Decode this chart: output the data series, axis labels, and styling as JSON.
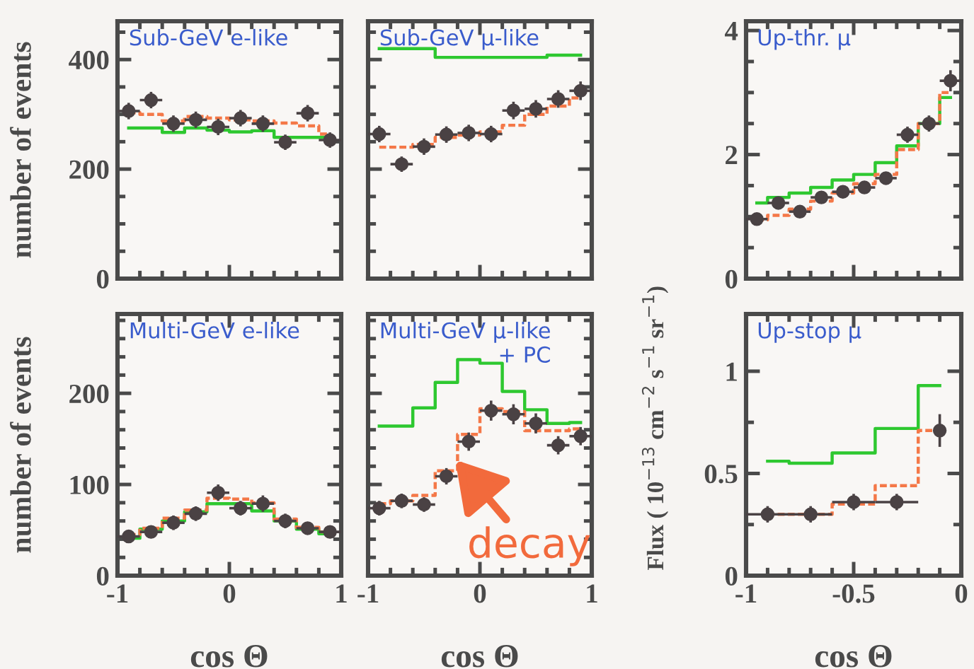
{
  "chart_data": [
    {
      "type": "scatter",
      "title": "Sub-GeV e-like",
      "ylabel": "number of events",
      "x": [
        -0.9,
        -0.7,
        -0.5,
        -0.3,
        -0.1,
        0.1,
        0.3,
        0.5,
        0.7,
        0.9
      ],
      "xlim": [
        -1,
        1
      ],
      "ylim": [
        0,
        470
      ],
      "xticks": [
        -1,
        {
          "value": -0.8,
          "label": null
        },
        {
          "value": -0.6,
          "label": null
        },
        {
          "value": -0.4,
          "label": null
        },
        {
          "value": -0.2,
          "label": null
        },
        0,
        {
          "value": 0.2,
          "label": null
        },
        {
          "value": 0.4,
          "label": null
        },
        {
          "value": 0.6,
          "label": null
        },
        {
          "value": 0.8,
          "label": null
        },
        1
      ],
      "yticks": [
        0,
        {
          "value": 50,
          "label": null
        },
        {
          "value": 100,
          "label": null
        },
        {
          "value": 150,
          "label": null
        },
        200,
        {
          "value": 250,
          "label": null
        },
        {
          "value": 300,
          "label": null
        },
        {
          "value": 350,
          "label": null
        },
        400,
        {
          "value": 450,
          "label": null
        }
      ],
      "tick_labels": "y",
      "series": [
        {
          "marker": "circle",
          "color": "#4a4244",
          "values": [
            306,
            326,
            283,
            290,
            277,
            293,
            283,
            249,
            302,
            253
          ],
          "errors": [
            15,
            15,
            15,
            15,
            15,
            15,
            15,
            14,
            15,
            14
          ],
          "xerrors": [
            0.1,
            0.1,
            0.1,
            0.1,
            0.1,
            0.1,
            0.1,
            0.1,
            0.1,
            0.1
          ]
        },
        {
          "type": "step",
          "color": "#2ec830",
          "values": [
            275,
            275,
            267,
            275,
            271,
            268,
            270,
            258,
            258,
            258
          ]
        },
        {
          "type": "step",
          "color": "#f47848",
          "line_style": "dashed",
          "values": [
            303,
            300,
            288,
            296,
            293,
            290,
            288,
            284,
            279,
            264
          ]
        }
      ]
    },
    {
      "type": "scatter",
      "title": "Sub-GeV μ-like",
      "x": [
        -0.9,
        -0.7,
        -0.5,
        -0.3,
        -0.1,
        0.1,
        0.3,
        0.5,
        0.7,
        0.9
      ],
      "xlim": [
        -1,
        1
      ],
      "ylim": [
        0,
        470
      ],
      "xticks": [
        -1,
        {
          "value": -0.8,
          "label": null
        },
        {
          "value": -0.6,
          "label": null
        },
        {
          "value": -0.4,
          "label": null
        },
        {
          "value": -0.2,
          "label": null
        },
        0,
        {
          "value": 0.2,
          "label": null
        },
        {
          "value": 0.4,
          "label": null
        },
        {
          "value": 0.6,
          "label": null
        },
        {
          "value": 0.8,
          "label": null
        },
        1
      ],
      "yticks": [
        0,
        {
          "value": 50,
          "label": null
        },
        {
          "value": 100,
          "label": null
        },
        {
          "value": 150,
          "label": null
        },
        200,
        {
          "value": 250,
          "label": null
        },
        {
          "value": 300,
          "label": null
        },
        {
          "value": 350,
          "label": null
        },
        400,
        {
          "value": 450,
          "label": null
        }
      ],
      "tick_labels": false,
      "series": [
        {
          "marker": "circle",
          "color": "#4a4244",
          "values": [
            264,
            209,
            241,
            263,
            266,
            264,
            307,
            310,
            328,
            343
          ],
          "errors": [
            15,
            14,
            15,
            15,
            15,
            15,
            16,
            16,
            16,
            17
          ],
          "xerrors": [
            0.1,
            0.1,
            0.1,
            0.1,
            0.1,
            0.1,
            0.1,
            0.1,
            0.1,
            0.1
          ]
        },
        {
          "type": "step",
          "color": "#2ec830",
          "values": [
            420,
            420,
            420,
            404,
            404,
            404,
            404,
            404,
            408,
            408
          ]
        },
        {
          "type": "step",
          "color": "#f47848",
          "line_style": "dashed",
          "values": [
            240,
            240,
            245,
            258,
            262,
            268,
            280,
            300,
            315,
            330
          ]
        }
      ]
    },
    {
      "type": "scatter",
      "title": "Up-thr. μ",
      "ylabel": "Flux ( 10$^{−13}$ cm$^{−2}$ s$^{−1}$ sr$^{−1}$)",
      "x": [
        -0.95,
        -0.85,
        -0.75,
        -0.65,
        -0.55,
        -0.45,
        -0.35,
        -0.25,
        -0.15,
        -0.05
      ],
      "xlim": [
        -1,
        0
      ],
      "ylim": [
        0,
        4.15
      ],
      "xticks": [
        -1,
        {
          "value": -0.9,
          "label": null
        },
        {
          "value": -0.8,
          "label": null
        },
        {
          "value": -0.7,
          "label": null
        },
        {
          "value": -0.6,
          "label": null
        },
        -0.5,
        {
          "value": -0.4,
          "label": null
        },
        {
          "value": -0.3,
          "label": null
        },
        {
          "value": -0.2,
          "label": null
        },
        {
          "value": -0.1,
          "label": null
        },
        0
      ],
      "yticks": [
        0,
        {
          "value": 0.5,
          "label": null
        },
        {
          "value": 1,
          "label": null
        },
        {
          "value": 1.5,
          "label": null
        },
        2,
        {
          "value": 2.5,
          "label": null
        },
        {
          "value": 3,
          "label": null
        },
        {
          "value": 3.5,
          "label": null
        },
        4
      ],
      "tick_labels": "y",
      "series": [
        {
          "marker": "circle",
          "color": "#4a4244",
          "values": [
            0.96,
            1.22,
            1.08,
            1.31,
            1.4,
            1.47,
            1.62,
            2.32,
            2.5,
            3.19
          ],
          "errors": [
            0.08,
            0.09,
            0.08,
            0.09,
            0.09,
            0.09,
            0.1,
            0.13,
            0.13,
            0.17
          ],
          "xerrors": [
            0.05,
            0.05,
            0.05,
            0.05,
            0.05,
            0.05,
            0.05,
            0.05,
            0.05,
            0.05
          ]
        },
        {
          "type": "step",
          "color": "#2ec830",
          "values": [
            1.22,
            1.31,
            1.38,
            1.47,
            1.59,
            1.68,
            1.87,
            2.14,
            2.5,
            2.92
          ]
        },
        {
          "type": "step",
          "color": "#f47848",
          "line_style": "dashed",
          "values": [
            0.95,
            1.02,
            1.12,
            1.25,
            1.38,
            1.53,
            1.68,
            2.08,
            2.5,
            3.0
          ]
        }
      ]
    },
    {
      "type": "scatter",
      "title": "Multi-GeV e-like",
      "ylabel": "number of events",
      "xlabel": "cos Θ",
      "x": [
        -0.9,
        -0.7,
        -0.5,
        -0.3,
        -0.1,
        0.1,
        0.3,
        0.5,
        0.7,
        0.9
      ],
      "xlim": [
        -1,
        1
      ],
      "ylim": [
        0,
        287
      ],
      "xticks": [
        -1,
        {
          "value": -0.8,
          "label": null
        },
        {
          "value": -0.6,
          "label": null
        },
        {
          "value": -0.4,
          "label": null
        },
        {
          "value": -0.2,
          "label": null
        },
        0,
        {
          "value": 0.2,
          "label": null
        },
        {
          "value": 0.4,
          "label": null
        },
        {
          "value": 0.6,
          "label": null
        },
        {
          "value": 0.8,
          "label": null
        },
        1
      ],
      "yticks": [
        0,
        {
          "value": 20,
          "label": null
        },
        {
          "value": 40,
          "label": null
        },
        {
          "value": 60,
          "label": null
        },
        {
          "value": 80,
          "label": null
        },
        100,
        {
          "value": 120,
          "label": null
        },
        {
          "value": 140,
          "label": null
        },
        {
          "value": 160,
          "label": null
        },
        {
          "value": 180,
          "label": null
        },
        200,
        {
          "value": 220,
          "label": null
        },
        {
          "value": 240,
          "label": null
        },
        {
          "value": 260,
          "label": null
        },
        {
          "value": 280,
          "label": null
        }
      ],
      "series": [
        {
          "marker": "circle",
          "color": "#4a4244",
          "values": [
            43,
            48,
            58,
            68,
            91,
            74,
            79,
            60,
            52,
            48
          ],
          "errors": [
            7,
            7,
            8,
            8,
            9,
            8,
            9,
            8,
            7,
            7
          ],
          "xerrors": [
            0.1,
            0.1,
            0.1,
            0.1,
            0.1,
            0.1,
            0.1,
            0.1,
            0.1,
            0.1
          ]
        },
        {
          "type": "step",
          "color": "#2ec830",
          "values": [
            41,
            51,
            60,
            70,
            79,
            79,
            71,
            60,
            51,
            46
          ]
        },
        {
          "type": "step",
          "color": "#f47848",
          "line_style": "dashed",
          "values": [
            45,
            52,
            63,
            72,
            85,
            84,
            80,
            62,
            53,
            48
          ]
        }
      ]
    },
    {
      "type": "scatter",
      "title": "Multi-GeV μ-like\n+ PC",
      "xlabel": "cos Θ",
      "x": [
        -0.9,
        -0.7,
        -0.5,
        -0.3,
        -0.1,
        0.1,
        0.3,
        0.5,
        0.7,
        0.9
      ],
      "xlim": [
        -1,
        1
      ],
      "ylim": [
        0,
        287
      ],
      "xticks": [
        -1,
        {
          "value": -0.8,
          "label": null
        },
        {
          "value": -0.6,
          "label": null
        },
        {
          "value": -0.4,
          "label": null
        },
        {
          "value": -0.2,
          "label": null
        },
        0,
        {
          "value": 0.2,
          "label": null
        },
        {
          "value": 0.4,
          "label": null
        },
        {
          "value": 0.6,
          "label": null
        },
        {
          "value": 0.8,
          "label": null
        },
        1
      ],
      "yticks": [
        0,
        {
          "value": 20,
          "label": null
        },
        {
          "value": 40,
          "label": null
        },
        {
          "value": 60,
          "label": null
        },
        {
          "value": 80,
          "label": null
        },
        100,
        {
          "value": 120,
          "label": null
        },
        {
          "value": 140,
          "label": null
        },
        {
          "value": 160,
          "label": null
        },
        {
          "value": 180,
          "label": null
        },
        200,
        {
          "value": 220,
          "label": null
        },
        {
          "value": 240,
          "label": null
        },
        {
          "value": 260,
          "label": null
        },
        {
          "value": 280,
          "label": null
        }
      ],
      "tick_labels": "x",
      "annotations": [
        {
          "text": "decay",
          "x": -0.22,
          "y": 127
        }
      ],
      "series": [
        {
          "marker": "circle",
          "color": "#4a4244",
          "values": [
            74,
            82,
            78,
            109,
            147,
            181,
            177,
            167,
            143,
            153
          ],
          "errors": [
            8,
            8,
            8,
            9,
            10,
            11,
            11,
            11,
            10,
            10
          ],
          "xerrors": [
            0.1,
            0.1,
            0.1,
            0.1,
            0.1,
            0.1,
            0.1,
            0.1,
            0.1,
            0.1
          ]
        },
        {
          "type": "step",
          "color": "#2ec830",
          "values": [
            164,
            164,
            184,
            212,
            237,
            233,
            202,
            182,
            167,
            168
          ]
        },
        {
          "type": "step",
          "color": "#f47848",
          "line_style": "dashed",
          "values": [
            79,
            82,
            88,
            115,
            155,
            183,
            180,
            159,
            159,
            161
          ]
        }
      ]
    },
    {
      "type": "scatter",
      "title": "Up-stop μ",
      "xlabel": "cos Θ",
      "x": [
        -0.9,
        -0.7,
        -0.5,
        -0.3,
        -0.1
      ],
      "xlim": [
        -1,
        0
      ],
      "ylim": [
        0,
        1.28
      ],
      "xticks": [
        -1,
        {
          "value": -0.9,
          "label": null
        },
        {
          "value": -0.8,
          "label": null
        },
        {
          "value": -0.7,
          "label": null
        },
        {
          "value": -0.6,
          "label": null
        },
        -0.5,
        {
          "value": -0.4,
          "label": null
        },
        {
          "value": -0.3,
          "label": null
        },
        {
          "value": -0.2,
          "label": null
        },
        {
          "value": -0.1,
          "label": null
        },
        0
      ],
      "yticks": [
        0,
        {
          "value": 0.25,
          "label": null
        },
        0.5,
        {
          "value": 0.75,
          "label": null
        },
        1
      ],
      "series": [
        {
          "marker": "circle",
          "color": "#4a4244",
          "values": [
            0.3,
            0.3,
            0.36,
            0.36,
            0.71
          ],
          "errors": [
            0.04,
            0.04,
            0.04,
            0.04,
            0.08
          ],
          "xerrors": [
            0.1,
            0.1,
            0.1,
            0.1,
            null
          ]
        },
        {
          "type": "step",
          "color": "#2ec830",
          "values": [
            0.56,
            0.55,
            0.6,
            0.72,
            0.93
          ]
        },
        {
          "type": "step",
          "color": "#f47848",
          "line_style": "dashed",
          "values": [
            0.3,
            0.3,
            0.35,
            0.44,
            0.71
          ]
        }
      ]
    }
  ]
}
